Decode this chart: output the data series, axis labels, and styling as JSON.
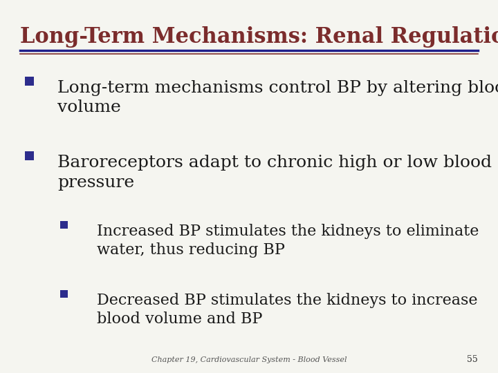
{
  "title": "Long-Term Mechanisms: Renal Regulation",
  "title_color": "#7B2C2C",
  "title_fontsize": 22,
  "bg_color": "#F5F5F0",
  "line1_color": "#1F1F8C",
  "line2_color": "#7B2C2C",
  "bullet_color": "#2C2C8C",
  "body_color": "#1A1A1A",
  "footer_text": "Chapter 19, Cardiovascular System - Blood Vessel",
  "footer_page": "55",
  "bullets": [
    {
      "level": 1,
      "text": "Long-term mechanisms control BP by altering blood\nvolume",
      "fontsize": 18
    },
    {
      "level": 1,
      "text": "Baroreceptors adapt to chronic high or low blood\npressure",
      "fontsize": 18
    },
    {
      "level": 2,
      "text": "Increased BP stimulates the kidneys to eliminate\nwater, thus reducing BP",
      "fontsize": 16
    },
    {
      "level": 2,
      "text": "Decreased BP stimulates the kidneys to increase\nblood volume and BP",
      "fontsize": 16
    }
  ]
}
